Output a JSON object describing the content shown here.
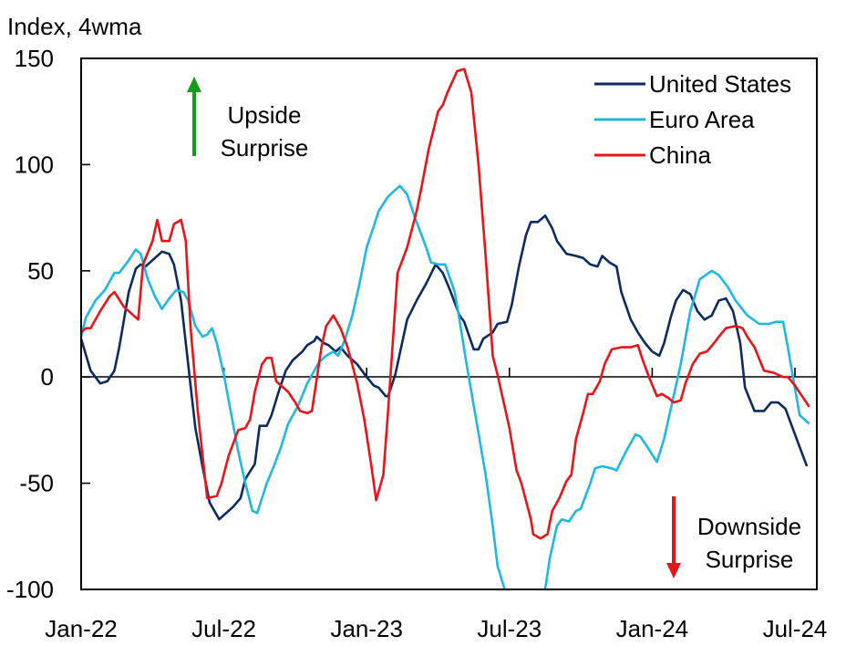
{
  "chart_data": {
    "type": "line",
    "ylabel": "Index, 4wma",
    "xlabel": "",
    "title": "",
    "x_unit": "months since Jan-22",
    "ylim": [
      -100,
      150
    ],
    "xlim": [
      0,
      30.5
    ],
    "yticks": [
      -100,
      -50,
      0,
      50,
      100,
      150
    ],
    "ytick_labels": [
      "-100",
      "-50",
      "0",
      "50",
      "100",
      "150"
    ],
    "xticks": [
      0,
      6,
      12,
      18,
      24,
      30
    ],
    "xtick_labels": [
      "Jan-22",
      "Jul-22",
      "Jan-23",
      "Jul-23",
      "Jan-24",
      "Jul-24"
    ],
    "grid": false,
    "zero_line": true,
    "legend_position": "top-right",
    "annotations": [
      {
        "text_lines": [
          "Upside",
          "Surprise"
        ],
        "arrow": "up",
        "color": "#1a9a1a",
        "position": "top-left"
      },
      {
        "text_lines": [
          "Downside",
          "Surprise"
        ],
        "arrow": "down",
        "color": "#e8141a",
        "position": "bottom-right"
      }
    ],
    "series": [
      {
        "name": "United States",
        "color": "#0d2b5e",
        "points": [
          [
            0,
            18
          ],
          [
            0.4,
            3
          ],
          [
            0.8,
            -3
          ],
          [
            1.1,
            -2
          ],
          [
            1.4,
            3
          ],
          [
            1.6,
            14
          ],
          [
            2.0,
            40
          ],
          [
            2.3,
            51
          ],
          [
            2.5,
            53
          ],
          [
            2.7,
            52
          ],
          [
            3.0,
            55
          ],
          [
            3.4,
            59
          ],
          [
            3.7,
            58
          ],
          [
            3.9,
            53
          ],
          [
            4.2,
            36
          ],
          [
            4.5,
            6
          ],
          [
            4.8,
            -24
          ],
          [
            5.1,
            -42
          ],
          [
            5.4,
            -59
          ],
          [
            5.8,
            -67
          ],
          [
            6.1,
            -64
          ],
          [
            6.4,
            -61
          ],
          [
            6.7,
            -57
          ],
          [
            6.9,
            -48
          ],
          [
            7.3,
            -41
          ],
          [
            7.5,
            -23
          ],
          [
            7.8,
            -23
          ],
          [
            8.0,
            -18
          ],
          [
            8.3,
            -7
          ],
          [
            8.6,
            3
          ],
          [
            8.9,
            8
          ],
          [
            9.3,
            12
          ],
          [
            9.5,
            15
          ],
          [
            9.8,
            17
          ],
          [
            9.9,
            19
          ],
          [
            10.2,
            16
          ],
          [
            10.4,
            15
          ],
          [
            10.7,
            12
          ],
          [
            10.9,
            14
          ],
          [
            11.2,
            10
          ],
          [
            11.6,
            6
          ],
          [
            12.0,
            0
          ],
          [
            12.3,
            -4
          ],
          [
            12.5,
            -5
          ],
          [
            12.8,
            -9
          ],
          [
            12.9,
            -9
          ],
          [
            13.2,
            1
          ],
          [
            13.7,
            27
          ],
          [
            14.1,
            36
          ],
          [
            14.5,
            44
          ],
          [
            14.9,
            53
          ],
          [
            15.2,
            49
          ],
          [
            15.5,
            41
          ],
          [
            15.9,
            29
          ],
          [
            16.1,
            26
          ],
          [
            16.5,
            13
          ],
          [
            16.7,
            13
          ],
          [
            16.9,
            18
          ],
          [
            17.3,
            21
          ],
          [
            17.5,
            25
          ],
          [
            17.9,
            26
          ],
          [
            18.1,
            34
          ],
          [
            18.4,
            52
          ],
          [
            18.7,
            67
          ],
          [
            18.9,
            73
          ],
          [
            19.2,
            73
          ],
          [
            19.5,
            76
          ],
          [
            19.8,
            70
          ],
          [
            20.0,
            64
          ],
          [
            20.4,
            58
          ],
          [
            20.8,
            57
          ],
          [
            21.1,
            56
          ],
          [
            21.4,
            53
          ],
          [
            21.7,
            52
          ],
          [
            21.9,
            57
          ],
          [
            22.2,
            54
          ],
          [
            22.5,
            52
          ],
          [
            22.7,
            40
          ],
          [
            23.1,
            27
          ],
          [
            23.4,
            21
          ],
          [
            23.7,
            16
          ],
          [
            24.0,
            12
          ],
          [
            24.3,
            10
          ],
          [
            24.5,
            16
          ],
          [
            24.8,
            29
          ],
          [
            25.0,
            36
          ],
          [
            25.3,
            41
          ],
          [
            25.6,
            39
          ],
          [
            25.9,
            31
          ],
          [
            26.2,
            27
          ],
          [
            26.5,
            29
          ],
          [
            26.8,
            36
          ],
          [
            27.1,
            37
          ],
          [
            27.4,
            31
          ],
          [
            27.7,
            16
          ],
          [
            27.9,
            -5
          ],
          [
            28.3,
            -16
          ],
          [
            28.7,
            -16
          ],
          [
            29.0,
            -12
          ],
          [
            29.3,
            -12
          ],
          [
            29.6,
            -15
          ],
          [
            29.9,
            -24
          ],
          [
            30.2,
            -33
          ],
          [
            30.5,
            -42
          ]
        ]
      },
      {
        "name": "Euro Area",
        "color": "#1fb8e0",
        "points": [
          [
            0,
            19
          ],
          [
            0.2,
            28
          ],
          [
            0.6,
            36
          ],
          [
            1.0,
            41
          ],
          [
            1.4,
            49
          ],
          [
            1.6,
            49
          ],
          [
            2.0,
            55
          ],
          [
            2.3,
            60
          ],
          [
            2.5,
            58
          ],
          [
            2.8,
            46
          ],
          [
            3.1,
            38
          ],
          [
            3.4,
            32
          ],
          [
            3.7,
            37
          ],
          [
            4.0,
            41
          ],
          [
            4.3,
            40
          ],
          [
            4.5,
            36
          ],
          [
            4.8,
            24
          ],
          [
            5.1,
            19
          ],
          [
            5.3,
            20
          ],
          [
            5.5,
            23
          ],
          [
            5.7,
            16
          ],
          [
            6.0,
            1
          ],
          [
            6.2,
            -11
          ],
          [
            6.6,
            -35
          ],
          [
            6.9,
            -50
          ],
          [
            7.2,
            -63
          ],
          [
            7.4,
            -64
          ],
          [
            7.6,
            -57
          ],
          [
            7.8,
            -50
          ],
          [
            8.1,
            -42
          ],
          [
            8.4,
            -33
          ],
          [
            8.7,
            -22
          ],
          [
            9.1,
            -14
          ],
          [
            9.5,
            -3
          ],
          [
            9.8,
            3
          ],
          [
            10.0,
            7
          ],
          [
            10.3,
            10
          ],
          [
            10.6,
            12
          ],
          [
            10.8,
            10
          ],
          [
            11.1,
            18
          ],
          [
            11.4,
            29
          ],
          [
            11.7,
            44
          ],
          [
            12.0,
            61
          ],
          [
            12.3,
            71
          ],
          [
            12.5,
            78
          ],
          [
            12.9,
            85
          ],
          [
            13.4,
            90
          ],
          [
            13.7,
            86
          ],
          [
            14.0,
            76
          ],
          [
            14.3,
            67
          ],
          [
            14.5,
            61
          ],
          [
            14.7,
            54
          ],
          [
            15.0,
            53
          ],
          [
            15.3,
            53
          ],
          [
            15.7,
            40
          ],
          [
            15.9,
            27
          ],
          [
            16.2,
            6
          ],
          [
            16.6,
            -20
          ],
          [
            17.0,
            -46
          ],
          [
            17.3,
            -70
          ],
          [
            17.5,
            -89
          ],
          [
            17.8,
            -100
          ],
          [
            18.0,
            -115
          ],
          [
            18.5,
            -125
          ],
          [
            19.0,
            -115
          ],
          [
            19.5,
            -100
          ],
          [
            19.7,
            -85
          ],
          [
            20.0,
            -70
          ],
          [
            20.2,
            -67
          ],
          [
            20.5,
            -68
          ],
          [
            20.8,
            -63
          ],
          [
            21.0,
            -62
          ],
          [
            21.4,
            -50
          ],
          [
            21.6,
            -43
          ],
          [
            21.9,
            -42
          ],
          [
            22.3,
            -43
          ],
          [
            22.5,
            -44
          ],
          [
            22.9,
            -35
          ],
          [
            23.3,
            -27
          ],
          [
            23.5,
            -28
          ],
          [
            23.8,
            -33
          ],
          [
            24.2,
            -40
          ],
          [
            24.5,
            -29
          ],
          [
            24.8,
            -14
          ],
          [
            25.2,
            6
          ],
          [
            25.6,
            31
          ],
          [
            26.0,
            46
          ],
          [
            26.5,
            50
          ],
          [
            26.8,
            48
          ],
          [
            27.2,
            42
          ],
          [
            27.5,
            36
          ],
          [
            28.0,
            29
          ],
          [
            28.5,
            25
          ],
          [
            28.9,
            25
          ],
          [
            29.2,
            26
          ],
          [
            29.5,
            26
          ],
          [
            29.7,
            14
          ],
          [
            29.9,
            1
          ],
          [
            30.2,
            -18
          ],
          [
            30.6,
            -22
          ]
        ]
      },
      {
        "name": "China",
        "color": "#e8141a",
        "points": [
          [
            0,
            21
          ],
          [
            0.2,
            23
          ],
          [
            0.4,
            23
          ],
          [
            0.8,
            31
          ],
          [
            1.2,
            38
          ],
          [
            1.4,
            40
          ],
          [
            1.8,
            33
          ],
          [
            2.2,
            29
          ],
          [
            2.4,
            27
          ],
          [
            2.6,
            53
          ],
          [
            3.0,
            64
          ],
          [
            3.2,
            74
          ],
          [
            3.4,
            64
          ],
          [
            3.7,
            64
          ],
          [
            3.9,
            72
          ],
          [
            4.2,
            74
          ],
          [
            4.4,
            64
          ],
          [
            4.6,
            23
          ],
          [
            4.9,
            -16
          ],
          [
            5.3,
            -57
          ],
          [
            5.7,
            -56
          ],
          [
            5.9,
            -50
          ],
          [
            6.2,
            -37
          ],
          [
            6.6,
            -25
          ],
          [
            6.9,
            -24
          ],
          [
            7.1,
            -20
          ],
          [
            7.3,
            -7
          ],
          [
            7.6,
            6
          ],
          [
            7.8,
            9
          ],
          [
            8.0,
            9
          ],
          [
            8.2,
            -2
          ],
          [
            8.4,
            -4
          ],
          [
            8.7,
            -7
          ],
          [
            9.0,
            -12
          ],
          [
            9.2,
            -16
          ],
          [
            9.5,
            -17
          ],
          [
            9.7,
            -16
          ],
          [
            9.9,
            -1
          ],
          [
            10.1,
            14
          ],
          [
            10.3,
            24
          ],
          [
            10.6,
            29
          ],
          [
            10.9,
            23
          ],
          [
            11.2,
            14
          ],
          [
            11.6,
            -3
          ],
          [
            11.9,
            -20
          ],
          [
            12.2,
            -42
          ],
          [
            12.4,
            -58
          ],
          [
            12.7,
            -46
          ],
          [
            12.9,
            -16
          ],
          [
            13.3,
            49
          ],
          [
            13.7,
            61
          ],
          [
            14.1,
            78
          ],
          [
            14.3,
            89
          ],
          [
            14.6,
            107
          ],
          [
            15.0,
            125
          ],
          [
            15.2,
            128
          ],
          [
            15.4,
            134
          ],
          [
            15.8,
            144
          ],
          [
            16.1,
            145
          ],
          [
            16.4,
            134
          ],
          [
            16.7,
            100
          ],
          [
            17.0,
            57
          ],
          [
            17.3,
            10
          ],
          [
            17.5,
            1
          ],
          [
            17.7,
            -9
          ],
          [
            18.0,
            -24
          ],
          [
            18.3,
            -44
          ],
          [
            18.5,
            -50
          ],
          [
            18.9,
            -67
          ],
          [
            19.0,
            -74
          ],
          [
            19.3,
            -76
          ],
          [
            19.6,
            -74
          ],
          [
            19.8,
            -63
          ],
          [
            20.1,
            -57
          ],
          [
            20.4,
            -49
          ],
          [
            20.6,
            -46
          ],
          [
            20.8,
            -29
          ],
          [
            21.1,
            -17
          ],
          [
            21.3,
            -8
          ],
          [
            21.5,
            -8
          ],
          [
            21.8,
            -2
          ],
          [
            22.0,
            6
          ],
          [
            22.3,
            13
          ],
          [
            22.7,
            14
          ],
          [
            23.0,
            14
          ],
          [
            23.1,
            14
          ],
          [
            23.4,
            15
          ],
          [
            23.6,
            8
          ],
          [
            23.9,
            -1
          ],
          [
            24.2,
            -9
          ],
          [
            24.4,
            -8
          ],
          [
            24.7,
            -10
          ],
          [
            24.9,
            -12
          ],
          [
            25.2,
            -11
          ],
          [
            25.4,
            -3
          ],
          [
            25.7,
            6
          ],
          [
            26.0,
            11
          ],
          [
            26.3,
            12
          ],
          [
            26.6,
            16
          ],
          [
            26.8,
            19
          ],
          [
            27.1,
            23
          ],
          [
            27.5,
            24
          ],
          [
            27.8,
            23
          ],
          [
            28.0,
            19
          ],
          [
            28.3,
            14
          ],
          [
            28.7,
            3
          ],
          [
            29.1,
            2
          ],
          [
            29.5,
            0
          ],
          [
            29.7,
            0
          ],
          [
            30.0,
            -4
          ],
          [
            30.3,
            -9
          ],
          [
            30.6,
            -14
          ]
        ]
      }
    ]
  }
}
